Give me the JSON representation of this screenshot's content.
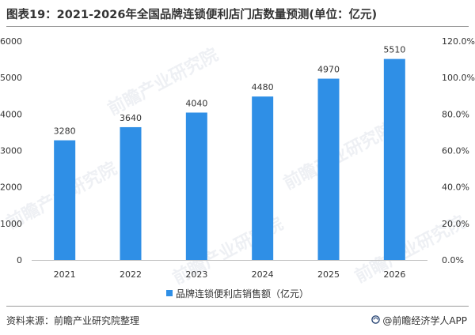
{
  "title": "图表19：2021-2026年全国品牌连锁便利店门店数量预测(单位：亿元)",
  "source_note": "资料来源：前瞻产业研究院整理",
  "brand": "@前瞻经济学人APP",
  "watermark_text": "前瞻产业研究院",
  "colors": {
    "bar": "#2f8fe6",
    "axis": "#bfbfbf",
    "text": "#333333",
    "brand": "#1f3d6e"
  },
  "chart_data": {
    "type": "bar",
    "categories": [
      "2021",
      "2022",
      "2023",
      "2024",
      "2025",
      "2026"
    ],
    "series": [
      {
        "name": "品牌连锁便利店销售额（亿元）",
        "values": [
          3280,
          3640,
          4040,
          4480,
          4970,
          5510
        ]
      }
    ],
    "ylim": [
      0,
      6000
    ],
    "yticks": [
      "0",
      "1000",
      "2000",
      "3000",
      "4000",
      "5000",
      "6000"
    ],
    "y2lim": [
      0,
      120
    ],
    "y2ticks": [
      "0.0%",
      "20.0%",
      "40.0%",
      "60.0%",
      "80.0%",
      "100.0%",
      "120.0%"
    ],
    "grid": false,
    "data_labels": true,
    "legend_position": "bottom"
  }
}
